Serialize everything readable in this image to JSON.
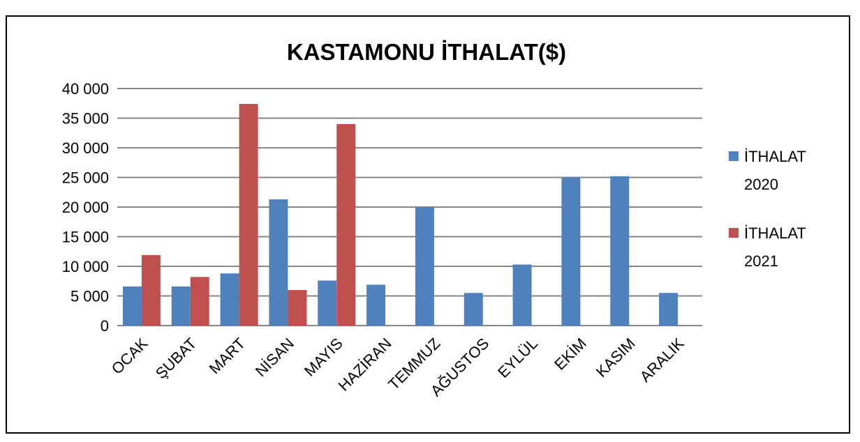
{
  "chart_data": {
    "type": "bar",
    "title": "KASTAMONU İTHALAT($)",
    "xlabel": "",
    "ylabel": "",
    "ylim": [
      0,
      40000
    ],
    "yticks": [
      0,
      5000,
      10000,
      15000,
      20000,
      25000,
      30000,
      35000,
      40000
    ],
    "ytick_labels": [
      "0",
      "5 000",
      "10 000",
      "15 000",
      "20 000",
      "25 000",
      "30 000",
      "35 000",
      "40 000"
    ],
    "grid": true,
    "legend_position": "right",
    "categories": [
      "OCAK",
      "ŞUBAT",
      "MART",
      "NİSAN",
      "MAYIS",
      "HAZİRAN",
      "TEMMUZ",
      "AĞUSTOS",
      "EYLÜL",
      "EKİM",
      "KASIM",
      "ARALIK"
    ],
    "series": [
      {
        "name": "İTHALAT 2020",
        "legend_lines": [
          "İTHALAT",
          "2020"
        ],
        "color": "#4F81BD",
        "values": [
          6600,
          6600,
          8800,
          21300,
          7600,
          6900,
          20000,
          5500,
          10300,
          25000,
          25200,
          5500
        ]
      },
      {
        "name": "İTHALAT 2021",
        "legend_lines": [
          "İTHALAT",
          "2021"
        ],
        "color": "#C0504D",
        "values": [
          11900,
          8200,
          37400,
          6000,
          34000,
          null,
          null,
          null,
          null,
          null,
          null,
          null
        ]
      }
    ]
  }
}
